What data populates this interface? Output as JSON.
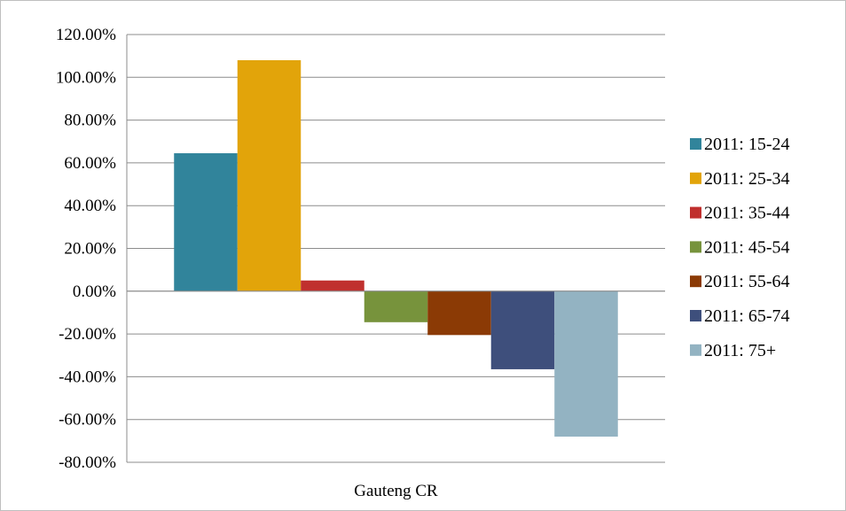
{
  "chart_data": {
    "type": "bar",
    "categories": [
      "Gauteng CR"
    ],
    "series": [
      {
        "name": "2011: 15-24",
        "values": [
          0.645
        ],
        "color": "#31849b"
      },
      {
        "name": "2011: 25-34",
        "values": [
          1.08
        ],
        "color": "#e2a40a"
      },
      {
        "name": "2011: 35-44",
        "values": [
          0.05
        ],
        "color": "#c0302e"
      },
      {
        "name": "2011: 45-54",
        "values": [
          -0.145
        ],
        "color": "#77933c"
      },
      {
        "name": "2011: 55-64",
        "values": [
          -0.205
        ],
        "color": "#8b3a05"
      },
      {
        "name": "2011: 65-74",
        "values": [
          -0.365
        ],
        "color": "#3e4f7c"
      },
      {
        "name": "2011: 75+",
        "values": [
          -0.68
        ],
        "color": "#93b3c2"
      }
    ],
    "ylim": [
      -0.8,
      1.2
    ],
    "ytick_values": [
      1.2,
      1.0,
      0.8,
      0.6,
      0.4,
      0.2,
      0.0,
      -0.2,
      -0.4,
      -0.6,
      -0.8
    ],
    "ytick_labels": [
      "120.00%",
      "100.00%",
      "80.00%",
      "60.00%",
      "40.00%",
      "20.00%",
      "0.00%",
      "-20.00%",
      "-40.00%",
      "-60.00%",
      "-80.00%"
    ],
    "grid": true,
    "legend_position": "right"
  }
}
